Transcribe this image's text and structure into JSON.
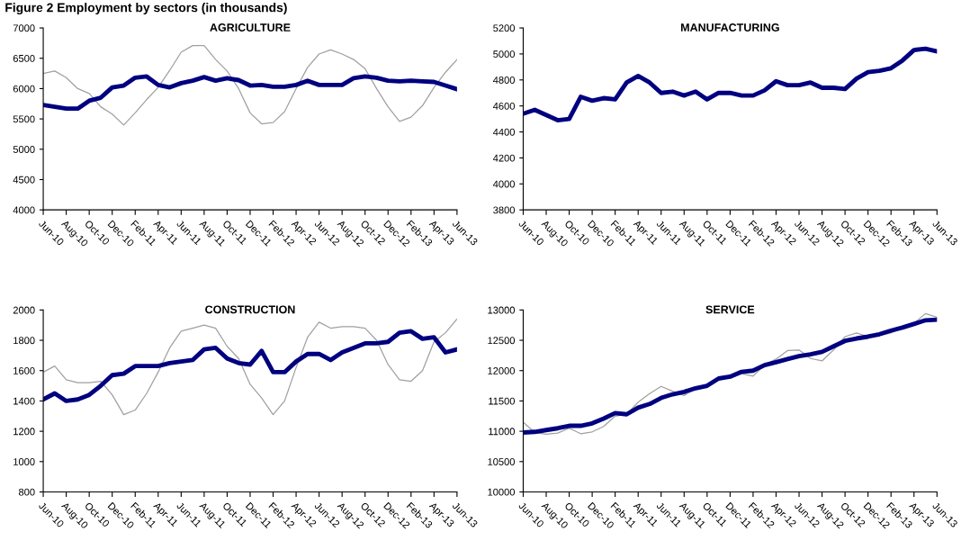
{
  "chart_data": [
    {
      "type": "line",
      "title": "AGRICULTURE",
      "annotations": [
        "Figure 2 Employment by sectors (in thousands)"
      ],
      "categories": [
        "Jun-10",
        null,
        "Aug-10",
        null,
        "Oct-10",
        null,
        "Dec-10",
        null,
        "Feb-11",
        null,
        "Apr-11",
        null,
        "Jun-11",
        null,
        "Aug-11",
        null,
        "Oct-11",
        null,
        "Dec-11",
        null,
        "Feb-12",
        null,
        "Apr-12",
        null,
        "Jun-12",
        null,
        "Aug-12",
        null,
        "Oct-12",
        null,
        "Dec-12",
        null,
        "Feb-13",
        null,
        "Apr-13",
        null,
        "Jun-13"
      ],
      "ylim": [
        4000,
        7000
      ],
      "yticks": [
        4000,
        4500,
        5000,
        5500,
        6000,
        6500,
        7000
      ],
      "grid": false,
      "marker": "none",
      "line_style": "solid",
      "series": [
        {
          "color": "#a0a0a0",
          "values": [
            6250,
            6290,
            6180,
            6000,
            5920,
            5700,
            5580,
            5400,
            5600,
            5820,
            6020,
            6300,
            6600,
            6710,
            6710,
            6480,
            6290,
            6000,
            5600,
            5420,
            5440,
            5620,
            6000,
            6350,
            6570,
            6640,
            6570,
            6480,
            6330,
            6000,
            5700,
            5460,
            5530,
            5720,
            6020,
            6270,
            6480
          ]
        },
        {
          "color": "#000080",
          "values": [
            5730,
            5700,
            5670,
            5670,
            5800,
            5850,
            6020,
            6050,
            6180,
            6200,
            6060,
            6020,
            6090,
            6130,
            6190,
            6130,
            6170,
            6140,
            6050,
            6060,
            6030,
            6030,
            6060,
            6130,
            6060,
            6060,
            6060,
            6170,
            6200,
            6180,
            6130,
            6120,
            6130,
            6120,
            6110,
            6050,
            5990
          ]
        }
      ]
    },
    {
      "type": "line",
      "title": "MANUFACTURING",
      "categories": [
        "Jun-10",
        null,
        "Aug-10",
        null,
        "Oct-10",
        null,
        "Dec-10",
        null,
        "Feb-11",
        null,
        "Apr-11",
        null,
        "Jun-11",
        null,
        "Aug-11",
        null,
        "Oct-11",
        null,
        "Dec-11",
        null,
        "Feb-12",
        null,
        "Apr-12",
        null,
        "Jun-12",
        null,
        "Aug-12",
        null,
        "Oct-12",
        null,
        "Dec-12",
        null,
        "Feb-13",
        null,
        "Apr-13",
        null,
        "Jun-13"
      ],
      "ylim": [
        3800,
        5200
      ],
      "yticks": [
        3800,
        4000,
        4200,
        4400,
        4600,
        4800,
        5000,
        5200
      ],
      "grid": false,
      "marker": "none",
      "line_style": "solid",
      "series": [
        {
          "color": "#000080",
          "values": [
            4540,
            4570,
            4530,
            4490,
            4500,
            4670,
            4640,
            4660,
            4650,
            4780,
            4830,
            4780,
            4700,
            4710,
            4680,
            4710,
            4650,
            4700,
            4700,
            4680,
            4680,
            4720,
            4790,
            4760,
            4760,
            4780,
            4740,
            4740,
            4730,
            4810,
            4860,
            4870,
            4890,
            4950,
            5030,
            5040,
            5020
          ]
        }
      ]
    },
    {
      "type": "line",
      "title": "CONSTRUCTION",
      "categories": [
        "Jun-10",
        null,
        "Aug-10",
        null,
        "Oct-10",
        null,
        "Dec-10",
        null,
        "Feb-11",
        null,
        "Apr-11",
        null,
        "Jun-11",
        null,
        "Aug-11",
        null,
        "Oct-11",
        null,
        "Dec-11",
        null,
        "Feb-12",
        null,
        "Apr-12",
        null,
        "Jun-12",
        null,
        "Aug-12",
        null,
        "Oct-12",
        null,
        "Dec-12",
        null,
        "Feb-13",
        null,
        "Apr-13",
        null,
        "Jun-13"
      ],
      "ylim": [
        800,
        2000
      ],
      "yticks": [
        800,
        1000,
        1200,
        1400,
        1600,
        1800,
        2000
      ],
      "grid": false,
      "marker": "none",
      "line_style": "solid",
      "series": [
        {
          "color": "#a0a0a0",
          "values": [
            1590,
            1630,
            1540,
            1520,
            1520,
            1530,
            1440,
            1310,
            1340,
            1450,
            1590,
            1750,
            1860,
            1880,
            1900,
            1880,
            1760,
            1680,
            1510,
            1420,
            1310,
            1400,
            1620,
            1820,
            1920,
            1880,
            1890,
            1890,
            1880,
            1800,
            1640,
            1540,
            1530,
            1600,
            1790,
            1850,
            1940
          ]
        },
        {
          "color": "#000080",
          "values": [
            1410,
            1450,
            1400,
            1410,
            1440,
            1500,
            1570,
            1580,
            1630,
            1630,
            1630,
            1650,
            1660,
            1670,
            1740,
            1750,
            1680,
            1650,
            1640,
            1730,
            1590,
            1590,
            1660,
            1710,
            1710,
            1670,
            1720,
            1750,
            1780,
            1780,
            1790,
            1850,
            1860,
            1810,
            1820,
            1720,
            1740
          ]
        }
      ]
    },
    {
      "type": "line",
      "title": "SERVICE",
      "categories": [
        "Jun-10",
        null,
        "Aug-10",
        null,
        "Oct-10",
        null,
        "Dec-10",
        null,
        "Feb-11",
        null,
        "Apr-11",
        null,
        "Jun-11",
        null,
        "Aug-11",
        null,
        "Oct-11",
        null,
        "Dec-11",
        null,
        "Feb-12",
        null,
        "Apr-12",
        null,
        "Jun-12",
        null,
        "Aug-12",
        null,
        "Oct-12",
        null,
        "Dec-12",
        null,
        "Feb-13",
        null,
        "Apr-13",
        null,
        "Jun-13"
      ],
      "ylim": [
        10000,
        13000
      ],
      "yticks": [
        10000,
        10500,
        11000,
        11500,
        12000,
        12500,
        13000
      ],
      "grid": false,
      "marker": "none",
      "line_style": "solid",
      "series": [
        {
          "color": "#a0a0a0",
          "values": [
            11150,
            10980,
            10950,
            10970,
            11050,
            10960,
            10990,
            11080,
            11250,
            11280,
            11480,
            11620,
            11740,
            11660,
            11590,
            11700,
            11740,
            11880,
            11880,
            11950,
            11910,
            12090,
            12190,
            12330,
            12340,
            12200,
            12160,
            12340,
            12560,
            12620,
            12560,
            12580,
            12620,
            12710,
            12780,
            12940,
            12880
          ]
        },
        {
          "color": "#000080",
          "values": [
            10980,
            10990,
            11020,
            11050,
            11090,
            11090,
            11130,
            11210,
            11300,
            11280,
            11390,
            11450,
            11550,
            11610,
            11650,
            11710,
            11750,
            11870,
            11900,
            11980,
            12000,
            12090,
            12140,
            12190,
            12240,
            12270,
            12310,
            12400,
            12490,
            12530,
            12560,
            12600,
            12660,
            12710,
            12770,
            12830,
            12840
          ]
        }
      ]
    }
  ]
}
